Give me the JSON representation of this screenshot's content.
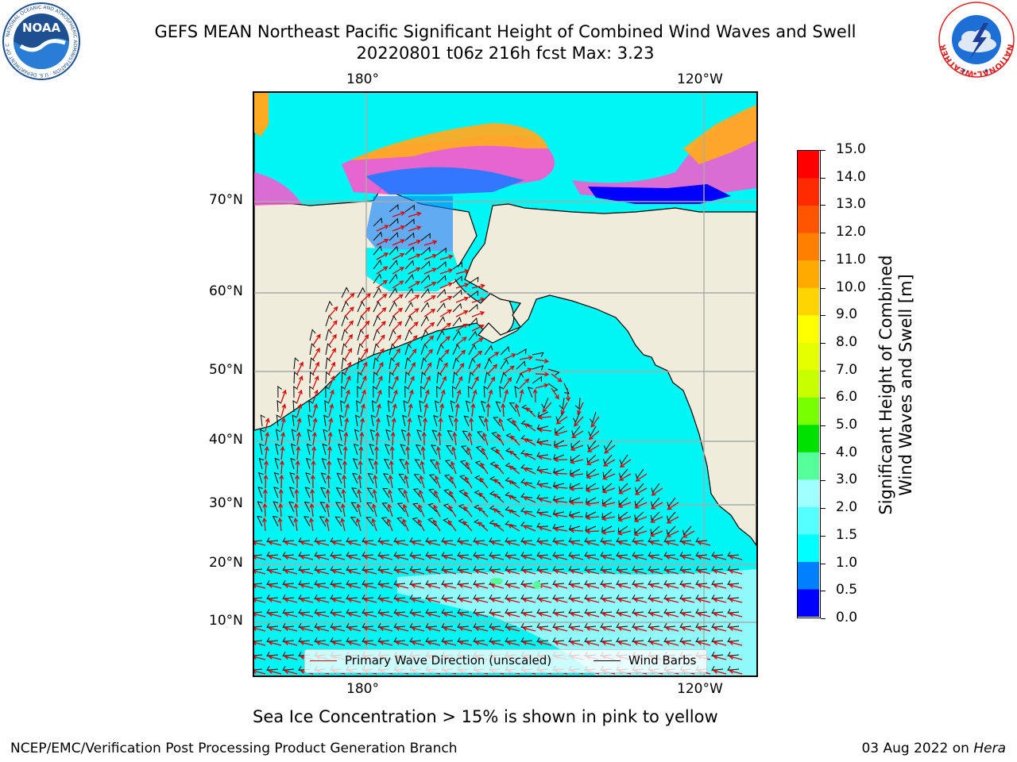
{
  "title": {
    "line1": "GEFS MEAN Northeast Pacific Significant Height of Combined Wind Waves and Swell",
    "line2": "20220801 t06z 216h fcst   Max: 3.23"
  },
  "logos": {
    "noaa": {
      "text": "NOAA",
      "ring_text": "NATIONAL OCEANIC AND ATMOSPHERIC ADMINISTRATION · U.S. DEPARTMENT OF COMMERCE"
    },
    "nws": {
      "ring_text": "NATIONAL WEATHER SERVICE"
    }
  },
  "map": {
    "lon_labels_top": [
      "180°",
      "120°W"
    ],
    "lon_labels_bottom": [
      "180°",
      "120°W"
    ],
    "lat_labels": [
      "70°N",
      "60°N",
      "50°N",
      "40°N",
      "30°N",
      "20°N",
      "10°N"
    ],
    "colors": {
      "land": "#efecdc",
      "ocean_main": "#00f5f5",
      "ocean_light": "#a0fbfb",
      "ocean_low": "#0080ff",
      "ocean_deep": "#0000ff",
      "ice_pink": "#ff55cc",
      "ice_orange": "#ffaa22",
      "wave_arrow": "#e00000",
      "wind_barb": "#000000",
      "grid": "#aaaaaa"
    }
  },
  "legend": {
    "wave_label": "Primary Wave Direction (unscaled)",
    "wind_label": "Wind Barbs"
  },
  "colorbar": {
    "title_line1": "Significant Height of Combined",
    "title_line2": "Wind Waves and Swell [m]",
    "ticks": [
      "15.0",
      "14.0",
      "13.0",
      "12.0",
      "11.0",
      "10.0",
      "9.0",
      "8.0",
      "7.0",
      "6.0",
      "5.0",
      "4.0",
      "3.0",
      "2.0",
      "1.5",
      "1.0",
      "0.5",
      "0.0"
    ],
    "colors": [
      "#ff0000",
      "#ff2a00",
      "#ff5500",
      "#ff7f00",
      "#ffaa00",
      "#ffd400",
      "#ffff00",
      "#e6ff00",
      "#c8ff00",
      "#78ff00",
      "#00e100",
      "#55ff99",
      "#a0ffff",
      "#55ffff",
      "#00ffff",
      "#0080ff",
      "#0000ff"
    ]
  },
  "caption": "Sea Ice Concentration > 15% is shown in pink to yellow",
  "footer": {
    "left": "NCEP/EMC/Verification Post Processing Product Generation Branch",
    "right_prefix": "03 Aug 2022 on ",
    "right_machine": "Hera"
  }
}
